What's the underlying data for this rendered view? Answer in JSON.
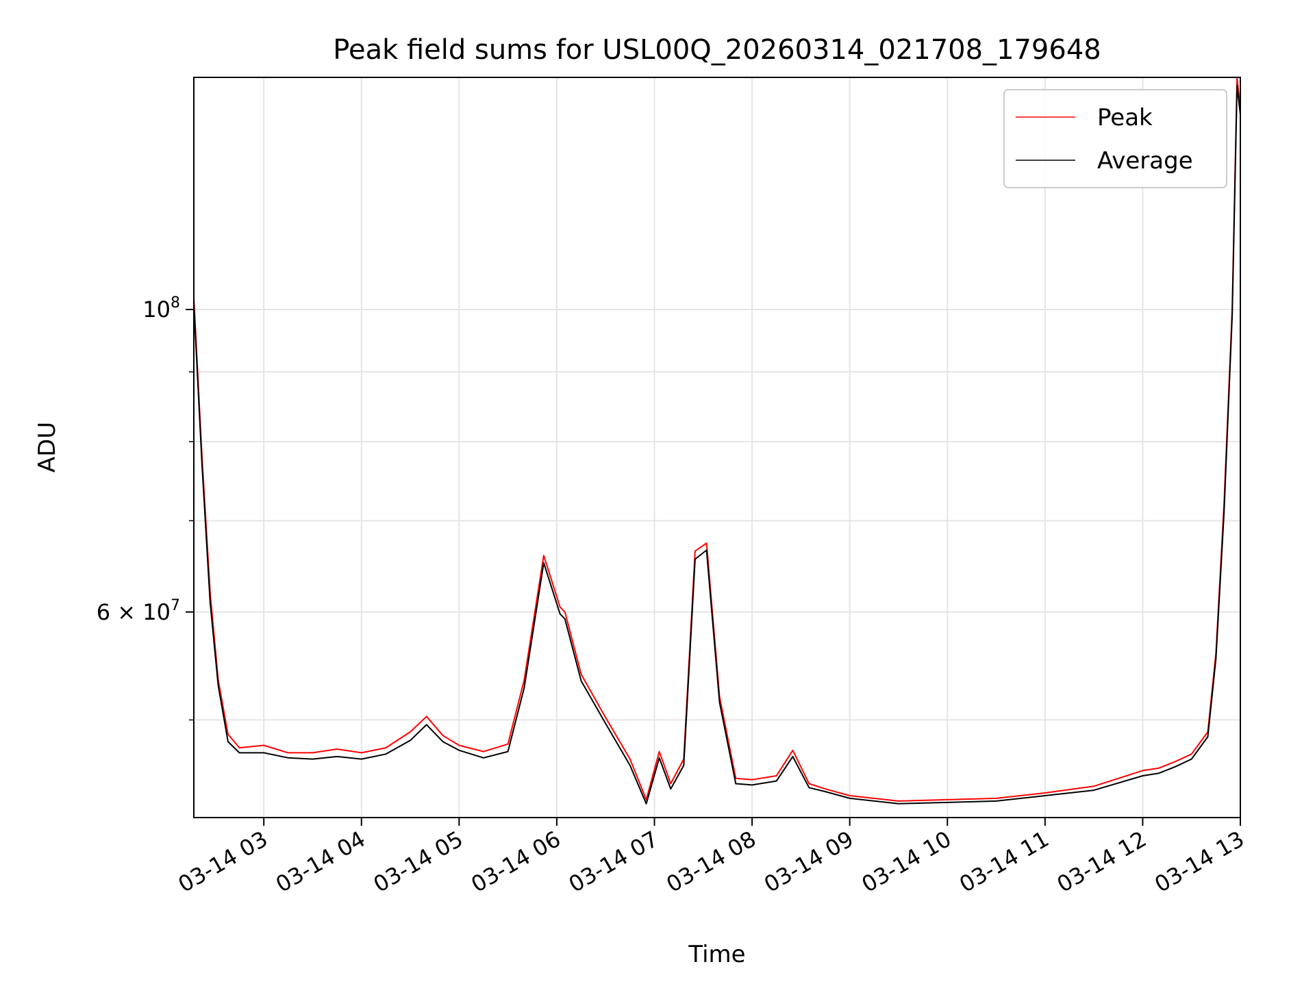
{
  "chart_data": {
    "type": "line",
    "title": "Peak field sums for USL00Q_20260314_021708_179648",
    "xlabel": "Time",
    "ylabel": "ADU",
    "yscale": "log",
    "grid": true,
    "legend_position": "top-right",
    "xlim": [
      "2026-03-14 02:17",
      "2026-03-14 13:00"
    ],
    "ylim": [
      42400000,
      148000000
    ],
    "x_tick_labels": [
      "03-14 03",
      "03-14 04",
      "03-14 05",
      "03-14 06",
      "03-14 07",
      "03-14 08",
      "03-14 09",
      "03-14 10",
      "03-14 11",
      "03-14 12",
      "03-14 13"
    ],
    "x_ticks": [
      "2026-03-14 03:00",
      "2026-03-14 04:00",
      "2026-03-14 05:00",
      "2026-03-14 06:00",
      "2026-03-14 07:00",
      "2026-03-14 08:00",
      "2026-03-14 09:00",
      "2026-03-14 10:00",
      "2026-03-14 11:00",
      "2026-03-14 12:00",
      "2026-03-14 13:00"
    ],
    "y_ticks": [
      {
        "value": 100000000,
        "label": "10^8"
      },
      {
        "value": 60000000,
        "label": "6 × 10^7"
      }
    ],
    "y_minor_ticks": [
      50000000,
      70000000,
      80000000,
      90000000
    ],
    "series": [
      {
        "name": "Peak",
        "color": "#ff0000",
        "x": [
          "2026-03-14 02:17",
          "2026-03-14 02:22",
          "2026-03-14 02:27",
          "2026-03-14 02:32",
          "2026-03-14 02:38",
          "2026-03-14 02:45",
          "2026-03-14 03:00",
          "2026-03-14 03:15",
          "2026-03-14 03:30",
          "2026-03-14 03:45",
          "2026-03-14 04:00",
          "2026-03-14 04:15",
          "2026-03-14 04:30",
          "2026-03-14 04:40",
          "2026-03-14 04:50",
          "2026-03-14 05:00",
          "2026-03-14 05:15",
          "2026-03-14 05:30",
          "2026-03-14 05:40",
          "2026-03-14 05:52",
          "2026-03-14 06:02",
          "2026-03-14 06:05",
          "2026-03-14 06:15",
          "2026-03-14 06:30",
          "2026-03-14 06:45",
          "2026-03-14 06:55",
          "2026-03-14 07:03",
          "2026-03-14 07:10",
          "2026-03-14 07:18",
          "2026-03-14 07:25",
          "2026-03-14 07:32",
          "2026-03-14 07:40",
          "2026-03-14 07:50",
          "2026-03-14 08:00",
          "2026-03-14 08:15",
          "2026-03-14 08:25",
          "2026-03-14 08:35",
          "2026-03-14 08:45",
          "2026-03-14 09:00",
          "2026-03-14 09:30",
          "2026-03-14 10:00",
          "2026-03-14 10:30",
          "2026-03-14 11:00",
          "2026-03-14 11:30",
          "2026-03-14 12:00",
          "2026-03-14 12:10",
          "2026-03-14 12:20",
          "2026-03-14 12:30",
          "2026-03-14 12:40",
          "2026-03-14 12:45",
          "2026-03-14 12:50",
          "2026-03-14 12:55",
          "2026-03-14 12:58",
          "2026-03-14 13:00"
        ],
        "values": [
          102000000,
          78000000,
          62000000,
          53500000,
          48800000,
          47700000,
          47900000,
          47300000,
          47300000,
          47600000,
          47300000,
          47700000,
          49000000,
          50300000,
          48700000,
          47900000,
          47400000,
          48000000,
          53500000,
          66000000,
          60500000,
          60000000,
          54000000,
          50200000,
          46800000,
          43700000,
          47400000,
          44900000,
          46800000,
          66500000,
          67400000,
          52000000,
          45300000,
          45200000,
          45500000,
          47500000,
          44900000,
          44500000,
          44000000,
          43600000,
          43700000,
          43800000,
          44200000,
          44700000,
          45900000,
          46100000,
          46600000,
          47200000,
          49000000,
          56000000,
          72000000,
          100000000,
          148000000,
          140000000
        ]
      },
      {
        "name": "Average",
        "color": "#000000",
        "x": [
          "2026-03-14 02:17",
          "2026-03-14 02:22",
          "2026-03-14 02:27",
          "2026-03-14 02:32",
          "2026-03-14 02:38",
          "2026-03-14 02:45",
          "2026-03-14 03:00",
          "2026-03-14 03:15",
          "2026-03-14 03:30",
          "2026-03-14 03:45",
          "2026-03-14 04:00",
          "2026-03-14 04:15",
          "2026-03-14 04:30",
          "2026-03-14 04:40",
          "2026-03-14 04:50",
          "2026-03-14 05:00",
          "2026-03-14 05:15",
          "2026-03-14 05:30",
          "2026-03-14 05:40",
          "2026-03-14 05:52",
          "2026-03-14 06:02",
          "2026-03-14 06:05",
          "2026-03-14 06:15",
          "2026-03-14 06:30",
          "2026-03-14 06:45",
          "2026-03-14 06:55",
          "2026-03-14 07:03",
          "2026-03-14 07:10",
          "2026-03-14 07:18",
          "2026-03-14 07:25",
          "2026-03-14 07:32",
          "2026-03-14 07:40",
          "2026-03-14 07:50",
          "2026-03-14 08:00",
          "2026-03-14 08:15",
          "2026-03-14 08:25",
          "2026-03-14 08:35",
          "2026-03-14 08:45",
          "2026-03-14 09:00",
          "2026-03-14 09:30",
          "2026-03-14 10:00",
          "2026-03-14 10:30",
          "2026-03-14 11:00",
          "2026-03-14 11:30",
          "2026-03-14 12:00",
          "2026-03-14 12:10",
          "2026-03-14 12:20",
          "2026-03-14 12:30",
          "2026-03-14 12:40",
          "2026-03-14 12:45",
          "2026-03-14 12:50",
          "2026-03-14 12:55",
          "2026-03-14 12:58",
          "2026-03-14 13:00"
        ],
        "values": [
          101000000,
          77000000,
          61000000,
          53000000,
          48200000,
          47300000,
          47300000,
          46900000,
          46800000,
          47000000,
          46800000,
          47200000,
          48300000,
          49600000,
          48200000,
          47500000,
          46900000,
          47400000,
          52800000,
          65200000,
          59800000,
          59300000,
          53400000,
          49700000,
          46300000,
          43400000,
          46900000,
          44500000,
          46300000,
          65600000,
          66600000,
          51500000,
          44900000,
          44800000,
          45100000,
          47000000,
          44600000,
          44300000,
          43800000,
          43400000,
          43500000,
          43600000,
          44000000,
          44400000,
          45500000,
          45700000,
          46200000,
          46800000,
          48600000,
          55500000,
          71000000,
          99000000,
          146000000,
          139000000
        ]
      }
    ]
  }
}
